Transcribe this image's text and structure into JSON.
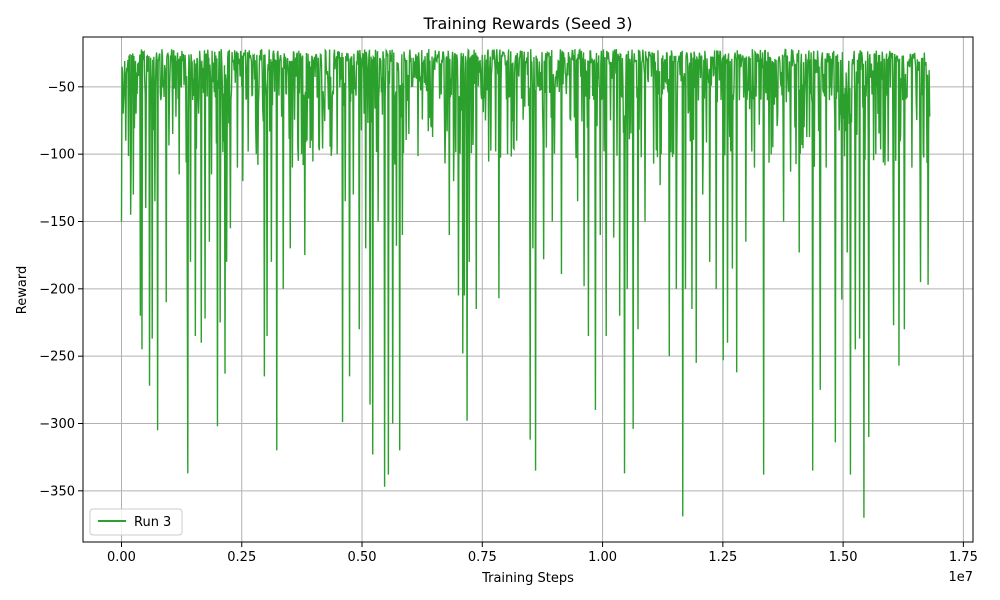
{
  "chart_data": {
    "type": "line",
    "title": "Training Rewards (Seed 3)",
    "xlabel": "Training Steps",
    "ylabel": "Reward",
    "x_scale_label": "1e7",
    "xlim": [
      -0.08,
      1.77
    ],
    "ylim": [
      -388,
      -13
    ],
    "x_unit": 10000000.0,
    "x_ticks": [
      0.0,
      0.25,
      0.5,
      0.75,
      1.0,
      1.25,
      1.5,
      1.75
    ],
    "x_tick_labels": [
      "0.00",
      "0.25",
      "0.50",
      "0.75",
      "1.00",
      "1.25",
      "1.50",
      "1.75"
    ],
    "y_ticks": [
      -50,
      -100,
      -150,
      -200,
      -250,
      -300,
      -350
    ],
    "y_tick_labels": [
      "−50",
      "−100",
      "−150",
      "−200",
      "−250",
      "−300",
      "−350"
    ],
    "grid": true,
    "legend_position": "lower-left",
    "series": [
      {
        "name": "Run 3",
        "color": "#2ca02c",
        "x_range": [
          0,
          16800000
        ],
        "spikes": [
          [
            0.0,
            -150
          ],
          [
            0.005,
            -35
          ],
          [
            0.02,
            -70
          ],
          [
            0.05,
            -90
          ],
          [
            0.1,
            -145
          ],
          [
            0.13,
            -130
          ],
          [
            0.16,
            -70
          ],
          [
            0.21,
            -220
          ],
          [
            0.23,
            -245
          ],
          [
            0.27,
            -140
          ],
          [
            0.31,
            -272
          ],
          [
            0.34,
            -237
          ],
          [
            0.37,
            -135
          ],
          [
            0.4,
            -305
          ],
          [
            0.5,
            -210
          ],
          [
            0.57,
            -85
          ],
          [
            0.64,
            -115
          ],
          [
            0.73,
            -193
          ],
          [
            0.74,
            -337
          ],
          [
            0.77,
            -180
          ],
          [
            0.82,
            -235
          ],
          [
            0.86,
            -70
          ],
          [
            0.89,
            -240
          ],
          [
            0.93,
            -222
          ],
          [
            0.98,
            -165
          ],
          [
            1.0,
            -115
          ],
          [
            1.07,
            -302
          ],
          [
            1.1,
            -225
          ],
          [
            1.15,
            -263
          ],
          [
            1.17,
            -180
          ],
          [
            1.21,
            -155
          ],
          [
            1.29,
            -110
          ],
          [
            1.35,
            -120
          ],
          [
            1.5,
            -100
          ],
          [
            1.59,
            -265
          ],
          [
            1.62,
            -235
          ],
          [
            1.67,
            -180
          ],
          [
            1.73,
            -320
          ],
          [
            1.8,
            -200
          ],
          [
            1.88,
            -170
          ],
          [
            1.97,
            -105
          ],
          [
            2.04,
            -175
          ],
          [
            2.2,
            -95
          ],
          [
            2.25,
            -65
          ],
          [
            2.4,
            -100
          ],
          [
            2.46,
            -299
          ],
          [
            2.49,
            -135
          ],
          [
            2.54,
            -265
          ],
          [
            2.58,
            -130
          ],
          [
            2.65,
            -230
          ],
          [
            2.72,
            -170
          ],
          [
            2.77,
            -286
          ],
          [
            2.8,
            -323
          ],
          [
            2.86,
            -150
          ],
          [
            2.93,
            -347
          ],
          [
            2.97,
            -338
          ],
          [
            3.02,
            -300
          ],
          [
            3.06,
            -168
          ],
          [
            3.1,
            -320
          ],
          [
            3.13,
            -160
          ],
          [
            3.2,
            -85
          ],
          [
            3.45,
            -80
          ],
          [
            3.65,
            -160
          ],
          [
            3.7,
            -120
          ],
          [
            3.75,
            -205
          ],
          [
            3.8,
            -248
          ],
          [
            3.82,
            -205
          ],
          [
            3.85,
            -298
          ],
          [
            3.87,
            -180
          ],
          [
            3.95,
            -215
          ],
          [
            4.05,
            -75
          ],
          [
            4.2,
            -207
          ],
          [
            4.3,
            -100
          ],
          [
            4.4,
            -90
          ],
          [
            4.55,
            -312
          ],
          [
            4.58,
            -170
          ],
          [
            4.61,
            -335
          ],
          [
            4.7,
            -178
          ],
          [
            4.8,
            -150
          ],
          [
            4.9,
            -189
          ],
          [
            5.08,
            -135
          ],
          [
            5.15,
            -198
          ],
          [
            5.2,
            -235
          ],
          [
            5.28,
            -290
          ],
          [
            5.33,
            -160
          ],
          [
            5.4,
            -235
          ],
          [
            5.48,
            -162
          ],
          [
            5.55,
            -220
          ],
          [
            5.6,
            -337
          ],
          [
            5.63,
            -200
          ],
          [
            5.7,
            -304
          ],
          [
            5.75,
            -230
          ],
          [
            5.83,
            -150
          ],
          [
            6.0,
            -123
          ],
          [
            6.1,
            -250
          ],
          [
            6.18,
            -200
          ],
          [
            6.25,
            -369
          ],
          [
            6.28,
            -200
          ],
          [
            6.35,
            -215
          ],
          [
            6.4,
            -255
          ],
          [
            6.47,
            -130
          ],
          [
            6.55,
            -180
          ],
          [
            6.62,
            -200
          ],
          [
            6.7,
            -253
          ],
          [
            6.75,
            -240
          ],
          [
            6.8,
            -185
          ],
          [
            6.85,
            -262
          ],
          [
            6.95,
            -165
          ],
          [
            7.05,
            -110
          ],
          [
            7.15,
            -338
          ],
          [
            7.25,
            -95
          ],
          [
            7.37,
            -150
          ],
          [
            7.45,
            -113
          ],
          [
            7.55,
            -173
          ],
          [
            7.6,
            -80
          ],
          [
            7.7,
            -335
          ],
          [
            7.78,
            -275
          ],
          [
            7.85,
            -110
          ],
          [
            7.95,
            -314
          ],
          [
            8.02,
            -208
          ],
          [
            8.08,
            -173
          ],
          [
            8.12,
            -338
          ],
          [
            8.17,
            -245
          ],
          [
            8.22,
            -237
          ],
          [
            8.27,
            -370
          ],
          [
            8.32,
            -310
          ],
          [
            8.4,
            -100
          ],
          [
            8.6,
            -227
          ],
          [
            8.66,
            -257
          ],
          [
            8.72,
            -230
          ],
          [
            8.8,
            -110
          ],
          [
            8.9,
            -195
          ],
          [
            8.98,
            -197
          ],
          [
            9.0,
            -72
          ]
        ]
      }
    ]
  }
}
